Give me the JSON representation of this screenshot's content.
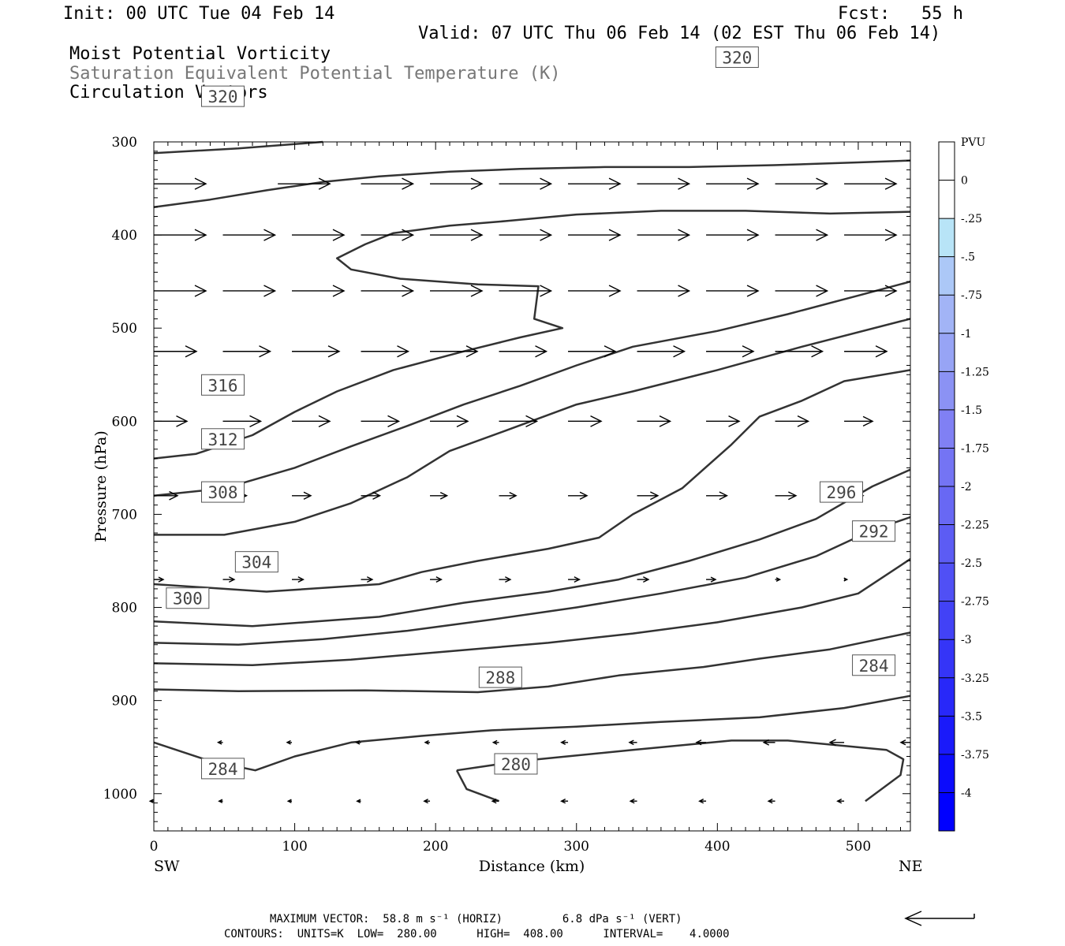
{
  "header": {
    "init": "Init: 00 UTC Tue 04 Feb 14",
    "fcst": "Fcst:   55 h",
    "valid": "Valid: 07 UTC Thu 06 Feb 14 (02 EST Thu 06 Feb 14)",
    "field1": "Moist Potential Vorticity",
    "field2": "Saturation Equivalent Potential Temperature (K)",
    "field3": "Circulation Vectors"
  },
  "footer": {
    "line1": "MAXIMUM VECTOR:  58.8 m s⁻¹ (HORIZ)         6.8 dPa s⁻¹ (VERT)",
    "line2": "CONTOURS:  UNITS=K  LOW=  280.00      HIGH=  408.00      INTERVAL=    4.0000"
  },
  "chart_data": {
    "type": "cross-section",
    "xlabel": "Distance (km)",
    "ylabel": "Pressure (hPa)",
    "xlim": [
      0,
      537
    ],
    "ylim": [
      1040,
      300
    ],
    "x_ticks": [
      0,
      100,
      200,
      300,
      400,
      500
    ],
    "y_ticks": [
      300,
      400,
      500,
      600,
      700,
      800,
      900,
      1000
    ],
    "left_end_label": "SW",
    "right_end_label": "NE",
    "colorbar": {
      "title": "PVU",
      "ticks": [
        "0",
        "-.25",
        "-.5",
        "-.75",
        "-1",
        "-1.25",
        "-1.5",
        "-1.75",
        "-2",
        "-2.25",
        "-2.5",
        "-2.75",
        "-3",
        "-3.25",
        "-3.5",
        "-3.75",
        "-4"
      ],
      "colors": [
        "#ffffff",
        "#ffffff",
        "#b8e4f7",
        "#acc8f7",
        "#a2b4f6",
        "#97a4f5",
        "#8b92f4",
        "#8080f4",
        "#7474f4",
        "#6868f4",
        "#5c5cf4",
        "#5050f5",
        "#4242f6",
        "#3535f7",
        "#2828f9",
        "#1a1afa",
        "#0c0cfc",
        "#0000ff"
      ]
    },
    "theta_es_contours": [
      {
        "level": 280,
        "label": "280",
        "label_at": [
          257,
          968
        ],
        "points": [
          [
            215,
            975
          ],
          [
            222,
            995
          ],
          [
            245,
            1008
          ]
        ],
        "points2": [
          [
            215,
            975
          ],
          [
            260,
            965
          ],
          [
            340,
            953
          ],
          [
            410,
            943
          ],
          [
            450,
            943
          ],
          [
            520,
            953
          ],
          [
            532,
            963
          ],
          [
            530,
            980
          ],
          [
            505,
            1008
          ]
        ]
      },
      {
        "level": 284,
        "label": "284",
        "label_at": [
          49,
          973
        ],
        "points": [
          [
            0,
            945
          ],
          [
            40,
            965
          ],
          [
            72,
            975
          ],
          [
            100,
            960
          ],
          [
            140,
            945
          ],
          [
            190,
            938
          ],
          [
            240,
            932
          ],
          [
            300,
            928
          ],
          [
            360,
            923
          ],
          [
            430,
            918
          ],
          [
            490,
            908
          ],
          [
            537,
            895
          ]
        ]
      },
      {
        "level": 284,
        "label": "284",
        "label_at": [
          511,
          862
        ],
        "points": [
          [
            0,
            945
          ],
          [
            0,
            945
          ]
        ]
      },
      {
        "level": 288,
        "label": "288",
        "label_at": [
          246,
          875
        ],
        "points": [
          [
            0,
            888
          ],
          [
            60,
            890
          ],
          [
            150,
            889
          ],
          [
            230,
            891
          ],
          [
            280,
            885
          ],
          [
            330,
            873
          ],
          [
            390,
            864
          ],
          [
            430,
            855
          ],
          [
            480,
            845
          ],
          [
            537,
            827
          ]
        ]
      },
      {
        "level": 292,
        "label": "292",
        "label_at": [
          511,
          718
        ],
        "points": [
          [
            0,
            860
          ],
          [
            70,
            862
          ],
          [
            140,
            856
          ],
          [
            210,
            847
          ],
          [
            280,
            838
          ],
          [
            340,
            828
          ],
          [
            400,
            816
          ],
          [
            460,
            800
          ],
          [
            500,
            785
          ],
          [
            537,
            748
          ]
        ]
      },
      {
        "level": 296,
        "label": "296",
        "label_at": [
          488,
          676
        ],
        "points": [
          [
            0,
            838
          ],
          [
            60,
            840
          ],
          [
            120,
            834
          ],
          [
            180,
            825
          ],
          [
            240,
            813
          ],
          [
            300,
            800
          ],
          [
            360,
            785
          ],
          [
            420,
            768
          ],
          [
            470,
            745
          ],
          [
            510,
            717
          ],
          [
            537,
            703
          ]
        ]
      },
      {
        "level": 300,
        "label": "300",
        "label_at": [
          24,
          790
        ],
        "points": [
          [
            0,
            815
          ],
          [
            70,
            820
          ],
          [
            160,
            810
          ],
          [
            220,
            795
          ],
          [
            280,
            783
          ],
          [
            330,
            770
          ],
          [
            380,
            750
          ],
          [
            430,
            727
          ],
          [
            470,
            705
          ],
          [
            510,
            670
          ],
          [
            537,
            652
          ]
        ]
      },
      {
        "level": 304,
        "label": "304",
        "label_at": [
          73,
          751
        ],
        "points": [
          [
            0,
            775
          ],
          [
            80,
            783
          ],
          [
            160,
            775
          ],
          [
            190,
            762
          ],
          [
            230,
            750
          ],
          [
            280,
            737
          ],
          [
            316,
            725
          ],
          [
            340,
            700
          ],
          [
            375,
            672
          ],
          [
            410,
            625
          ],
          [
            430,
            595
          ],
          [
            460,
            578
          ],
          [
            490,
            557
          ],
          [
            537,
            545
          ]
        ]
      },
      {
        "level": 308,
        "label": "308",
        "label_at": [
          49,
          676
        ],
        "points": [
          [
            0,
            722
          ],
          [
            50,
            722
          ],
          [
            100,
            708
          ],
          [
            140,
            688
          ],
          [
            180,
            660
          ],
          [
            210,
            632
          ],
          [
            250,
            610
          ],
          [
            300,
            582
          ],
          [
            340,
            568
          ],
          [
            400,
            545
          ],
          [
            460,
            520
          ],
          [
            537,
            490
          ]
        ]
      },
      {
        "level": 312,
        "label": "312",
        "label_at": [
          49,
          619
        ],
        "points": [
          [
            0,
            680
          ],
          [
            50,
            672
          ],
          [
            100,
            650
          ],
          [
            140,
            627
          ],
          [
            180,
            605
          ],
          [
            220,
            582
          ],
          [
            260,
            562
          ],
          [
            300,
            540
          ],
          [
            340,
            520
          ],
          [
            400,
            503
          ],
          [
            450,
            485
          ],
          [
            500,
            465
          ],
          [
            537,
            450
          ]
        ]
      },
      {
        "level": 316,
        "label": "316",
        "label_at": [
          49,
          561
        ],
        "points": [
          [
            0,
            640
          ],
          [
            30,
            635
          ],
          [
            70,
            615
          ],
          [
            100,
            590
          ],
          [
            130,
            568
          ],
          [
            170,
            545
          ],
          [
            220,
            525
          ],
          [
            260,
            510
          ],
          [
            290,
            500
          ],
          [
            270,
            490
          ],
          [
            273,
            455
          ],
          [
            230,
            453
          ],
          [
            175,
            447
          ],
          [
            140,
            437
          ],
          [
            130,
            425
          ],
          [
            150,
            410
          ],
          [
            170,
            398
          ],
          [
            210,
            390
          ],
          [
            250,
            385
          ],
          [
            300,
            378
          ],
          [
            360,
            374
          ],
          [
            420,
            374
          ],
          [
            480,
            377
          ],
          [
            537,
            375
          ]
        ]
      },
      {
        "level": 320,
        "label": "320",
        "label_at": [
          49,
          251
        ],
        "points": [
          [
            0,
            370
          ],
          [
            40,
            362
          ],
          [
            80,
            352
          ],
          [
            120,
            343
          ],
          [
            160,
            337
          ],
          [
            210,
            332
          ],
          [
            260,
            329
          ],
          [
            320,
            327
          ],
          [
            380,
            327
          ],
          [
            440,
            325
          ],
          [
            500,
            322
          ],
          [
            537,
            320
          ]
        ]
      },
      {
        "level": 320,
        "label": "320",
        "label_at": [
          414,
          209
        ],
        "points": [
          [
            0,
            312
          ],
          [
            60,
            307
          ],
          [
            120,
            300
          ]
        ]
      }
    ],
    "circulation_vectors": [
      {
        "p": 345,
        "cols": [
          [
            0,
            0.55
          ],
          [
            88,
            0.55
          ],
          [
            147,
            0.55
          ],
          [
            196,
            0.55
          ],
          [
            245,
            0.55
          ],
          [
            294,
            0.55
          ],
          [
            343,
            0.55
          ],
          [
            392,
            0.55
          ],
          [
            441,
            0.55
          ],
          [
            490,
            0.55
          ]
        ]
      },
      {
        "p": 400,
        "cols": [
          [
            0,
            0.55
          ],
          [
            49,
            0.55
          ],
          [
            98,
            0.55
          ],
          [
            147,
            0.55
          ],
          [
            196,
            0.55
          ],
          [
            245,
            0.55
          ],
          [
            294,
            0.55
          ],
          [
            343,
            0.55
          ],
          [
            392,
            0.55
          ],
          [
            441,
            0.55
          ],
          [
            490,
            0.55
          ]
        ]
      },
      {
        "p": 460,
        "cols": [
          [
            0,
            0.55
          ],
          [
            49,
            0.55
          ],
          [
            98,
            0.55
          ],
          [
            147,
            0.55
          ],
          [
            196,
            0.55
          ],
          [
            245,
            0.55
          ],
          [
            294,
            0.55
          ],
          [
            343,
            0.55
          ],
          [
            392,
            0.55
          ],
          [
            441,
            0.55
          ],
          [
            490,
            0.55
          ]
        ]
      },
      {
        "p": 525,
        "cols": [
          [
            0,
            0.45
          ],
          [
            49,
            0.5
          ],
          [
            98,
            0.5
          ],
          [
            147,
            0.5
          ],
          [
            196,
            0.5
          ],
          [
            245,
            0.5
          ],
          [
            294,
            0.5
          ],
          [
            343,
            0.5
          ],
          [
            392,
            0.5
          ],
          [
            441,
            0.5
          ],
          [
            490,
            0.45
          ]
        ]
      },
      {
        "p": 600,
        "cols": [
          [
            0,
            0.35
          ],
          [
            49,
            0.4
          ],
          [
            98,
            0.4
          ],
          [
            147,
            0.4
          ],
          [
            196,
            0.4
          ],
          [
            245,
            0.4
          ],
          [
            294,
            0.35
          ],
          [
            343,
            0.35
          ],
          [
            392,
            0.35
          ],
          [
            441,
            0.35
          ],
          [
            490,
            0.3
          ]
        ]
      },
      {
        "p": 680,
        "cols": [
          [
            0,
            0.25
          ],
          [
            49,
            0.25
          ],
          [
            98,
            0.2
          ],
          [
            147,
            0.2
          ],
          [
            196,
            0.18
          ],
          [
            245,
            0.18
          ],
          [
            294,
            0.2
          ],
          [
            343,
            0.22
          ],
          [
            392,
            0.22
          ],
          [
            441,
            0.22
          ],
          [
            490,
            0.2
          ]
        ]
      },
      {
        "p": 770,
        "cols": [
          [
            0,
            0.1
          ],
          [
            49,
            0.12
          ],
          [
            98,
            0.12
          ],
          [
            147,
            0.12
          ],
          [
            196,
            0.12
          ],
          [
            245,
            0.12
          ],
          [
            294,
            0.12
          ],
          [
            343,
            0.12
          ],
          [
            392,
            0.1
          ],
          [
            441,
            0.05
          ],
          [
            490,
            0.03
          ]
        ]
      },
      {
        "p": 945,
        "cols": [
          [
            49,
            -0.05
          ],
          [
            98,
            -0.05
          ],
          [
            147,
            -0.05
          ],
          [
            196,
            -0.05
          ],
          [
            245,
            -0.06
          ],
          [
            294,
            -0.07
          ],
          [
            343,
            -0.08
          ],
          [
            392,
            -0.1
          ],
          [
            441,
            -0.12
          ],
          [
            490,
            -0.15
          ],
          [
            537,
            -0.1
          ]
        ]
      },
      {
        "p": 1008,
        "cols": [
          [
            0,
            -0.04
          ],
          [
            49,
            -0.04
          ],
          [
            98,
            -0.04
          ],
          [
            147,
            -0.04
          ],
          [
            196,
            -0.06
          ],
          [
            245,
            -0.07
          ],
          [
            294,
            -0.07
          ],
          [
            343,
            -0.07
          ],
          [
            392,
            -0.07
          ],
          [
            441,
            -0.07
          ],
          [
            490,
            -0.07
          ]
        ]
      }
    ]
  }
}
